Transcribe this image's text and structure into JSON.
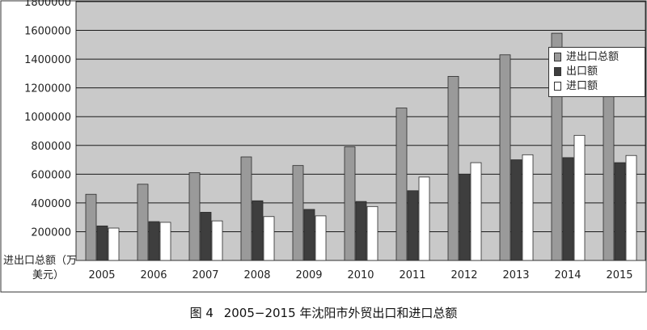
{
  "colors": {
    "plot_bg": "#c9c9c9",
    "total": "#9a9a9a",
    "export": "#3e3e3e",
    "import": "#ffffff",
    "grid": "#1a1a1a"
  },
  "caption": {
    "figure_no": "图 4",
    "text": "2005−2015 年沈阳市外贸出口和进口总额"
  },
  "chart_data": {
    "type": "bar",
    "title": "",
    "xlabel": "",
    "ylabel_line1": "进出口总额（万",
    "ylabel_line2": "美元）",
    "ylim": [
      0,
      1800000
    ],
    "yticks": [
      200000,
      400000,
      600000,
      800000,
      1000000,
      1200000,
      1400000,
      1600000,
      1800000
    ],
    "ytick_labels": [
      "200000",
      "400000",
      "600000",
      "800000",
      "1000000",
      "1200000",
      "1400000",
      "1600000",
      "1800000"
    ],
    "grid": true,
    "legend_position": "top-right",
    "categories": [
      "2005",
      "2006",
      "2007",
      "2008",
      "2009",
      "2010",
      "2011",
      "2012",
      "2013",
      "2014",
      "2015"
    ],
    "series": [
      {
        "name": "进出口总额",
        "color_key": "total",
        "values": [
          460000,
          530000,
          610000,
          720000,
          660000,
          790000,
          1060000,
          1280000,
          1430000,
          1580000,
          1400000
        ]
      },
      {
        "name": "出口额",
        "color_key": "export",
        "values": [
          240000,
          270000,
          335000,
          415000,
          355000,
          410000,
          485000,
          600000,
          700000,
          715000,
          680000
        ]
      },
      {
        "name": "进口额",
        "color_key": "import",
        "values": [
          225000,
          265000,
          275000,
          305000,
          310000,
          375000,
          580000,
          680000,
          735000,
          870000,
          730000
        ]
      }
    ]
  }
}
